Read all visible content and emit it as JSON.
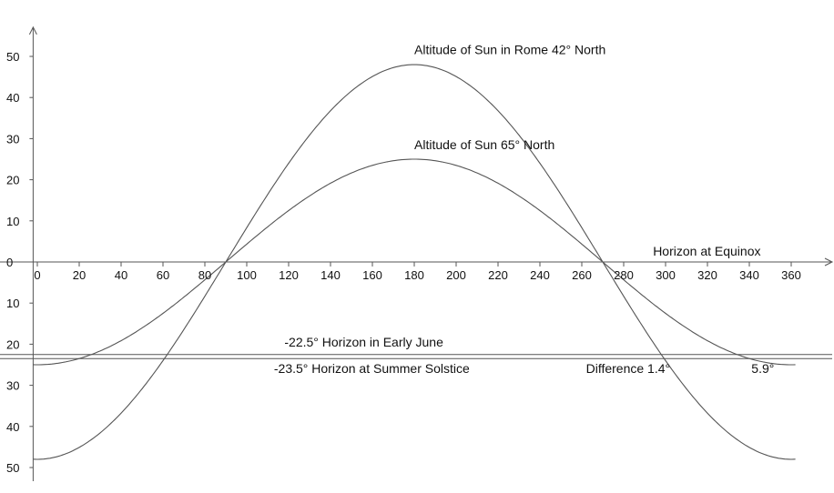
{
  "chart_data": {
    "type": "line",
    "title": "",
    "xlabel": "",
    "ylabel": "",
    "xlim": [
      -2,
      362
    ],
    "ylim": [
      -52,
      58
    ],
    "grid": false,
    "x_ticks": [
      0,
      20,
      40,
      60,
      80,
      100,
      120,
      140,
      160,
      180,
      200,
      220,
      240,
      260,
      280,
      300,
      320,
      340,
      360
    ],
    "x_tick_labels": [
      "0",
      "20",
      "40",
      "60",
      "80",
      "100",
      "120",
      "140",
      "160",
      "180",
      "200",
      "220",
      "240",
      "260",
      "280",
      "300",
      "320",
      "340",
      "360"
    ],
    "y_ticks": [
      50,
      40,
      30,
      20,
      10,
      0,
      -10,
      -20,
      -30,
      -40,
      -50
    ],
    "y_tick_labels": [
      "50",
      "40",
      "30",
      "20",
      "10",
      "0",
      "10",
      "20",
      "30",
      "40",
      "50"
    ],
    "curves": [
      {
        "name": "Altitude of Sun in Rome 42° North",
        "function": "-cos",
        "amplitude": 48
      },
      {
        "name": "Altitude of Sun 65° North",
        "function": "-cos",
        "amplitude": 25
      }
    ],
    "horizontal_lines": [
      {
        "name": "Horizon at Equinox",
        "y": 0
      },
      {
        "name": "-22.5° Horizon in Early June",
        "y": -22.5
      },
      {
        "name": "-23.5° Horizon at Summer Solstice",
        "y": -23.5
      }
    ],
    "annotations": [
      {
        "text": "Difference 1.4°",
        "x": 298,
        "y": -25.5
      },
      {
        "text": "5.9°",
        "x": 338,
        "y": -25.5
      }
    ],
    "colors": {
      "curve": "#555555",
      "axis": "#555555",
      "text": "#111111"
    }
  }
}
